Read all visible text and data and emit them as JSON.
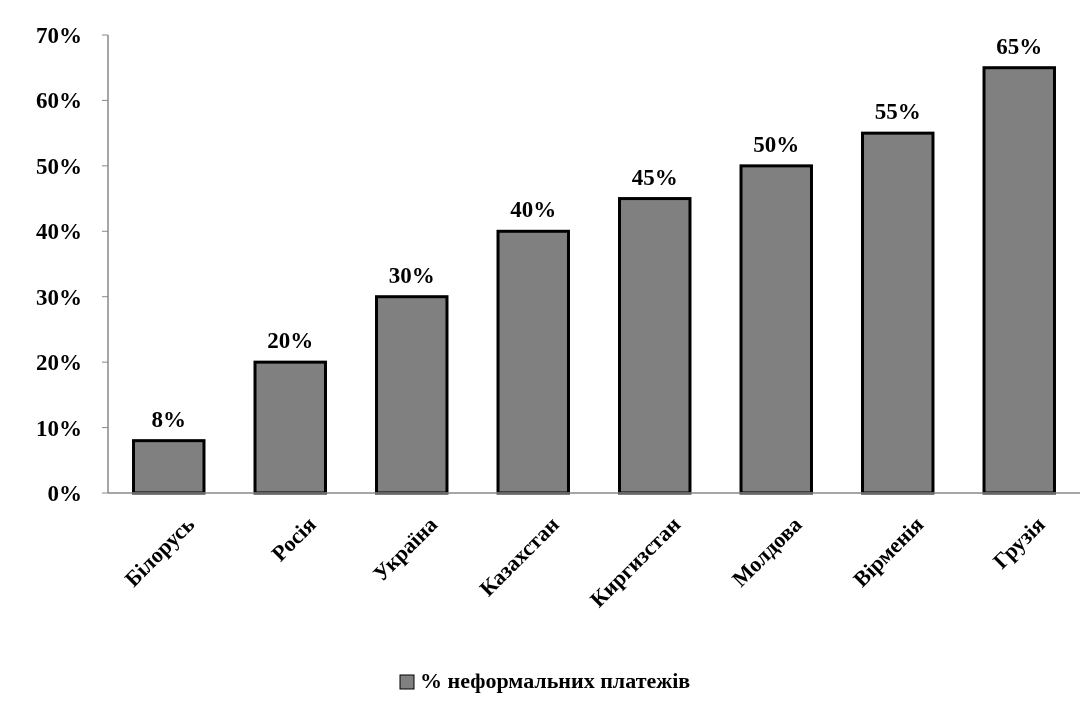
{
  "chart_data": {
    "type": "bar",
    "categories": [
      "Білорусь",
      "Росія",
      "Україна",
      "Казахстан",
      "Киргизстан",
      "Молдова",
      "Вірменія",
      "Грузія"
    ],
    "series": [
      {
        "name": "% неформальних платежів",
        "color": "#808080",
        "values": [
          8,
          20,
          30,
          40,
          45,
          50,
          55,
          65
        ],
        "value_labels": [
          "8%",
          "20%",
          "30%",
          "40%",
          "45%",
          "50%",
          "55%",
          "65%"
        ]
      }
    ],
    "ylim": [
      0,
      70
    ],
    "yticks": [
      {
        "value": 0,
        "label": "0%"
      },
      {
        "value": 10,
        "label": "10%"
      },
      {
        "value": 20,
        "label": "20%"
      },
      {
        "value": 30,
        "label": "30%"
      },
      {
        "value": 40,
        "label": "40%"
      },
      {
        "value": 50,
        "label": "50%"
      },
      {
        "value": 60,
        "label": "60%"
      },
      {
        "value": 70,
        "label": "70%"
      }
    ],
    "grid": false,
    "legend": "bottom"
  }
}
